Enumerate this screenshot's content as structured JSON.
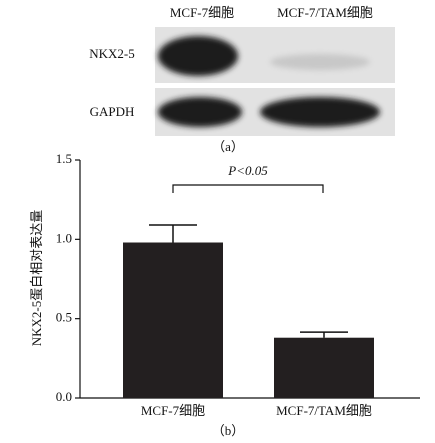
{
  "blot": {
    "columns": [
      "MCF-7细胞",
      "MCF-7/TAM细胞"
    ],
    "rows": [
      "NKX2-5",
      "GAPDH"
    ],
    "caption": "（a）"
  },
  "chart_data": {
    "type": "bar",
    "y_label": "NKX2-5蛋白相对表达量",
    "categories": [
      "MCF-7细胞",
      "MCF-7/TAM细胞"
    ],
    "values": [
      0.98,
      0.38
    ],
    "errors": [
      0.11,
      0.035
    ],
    "color": "#231f20",
    "ylim": [
      0,
      1.5
    ],
    "yticks": [
      {
        "value": 0,
        "label": "0.0"
      },
      0.5,
      {
        "value": 1,
        "label": "1.0"
      },
      1.5
    ],
    "annotation": "P<0.05",
    "caption": "（b）"
  }
}
